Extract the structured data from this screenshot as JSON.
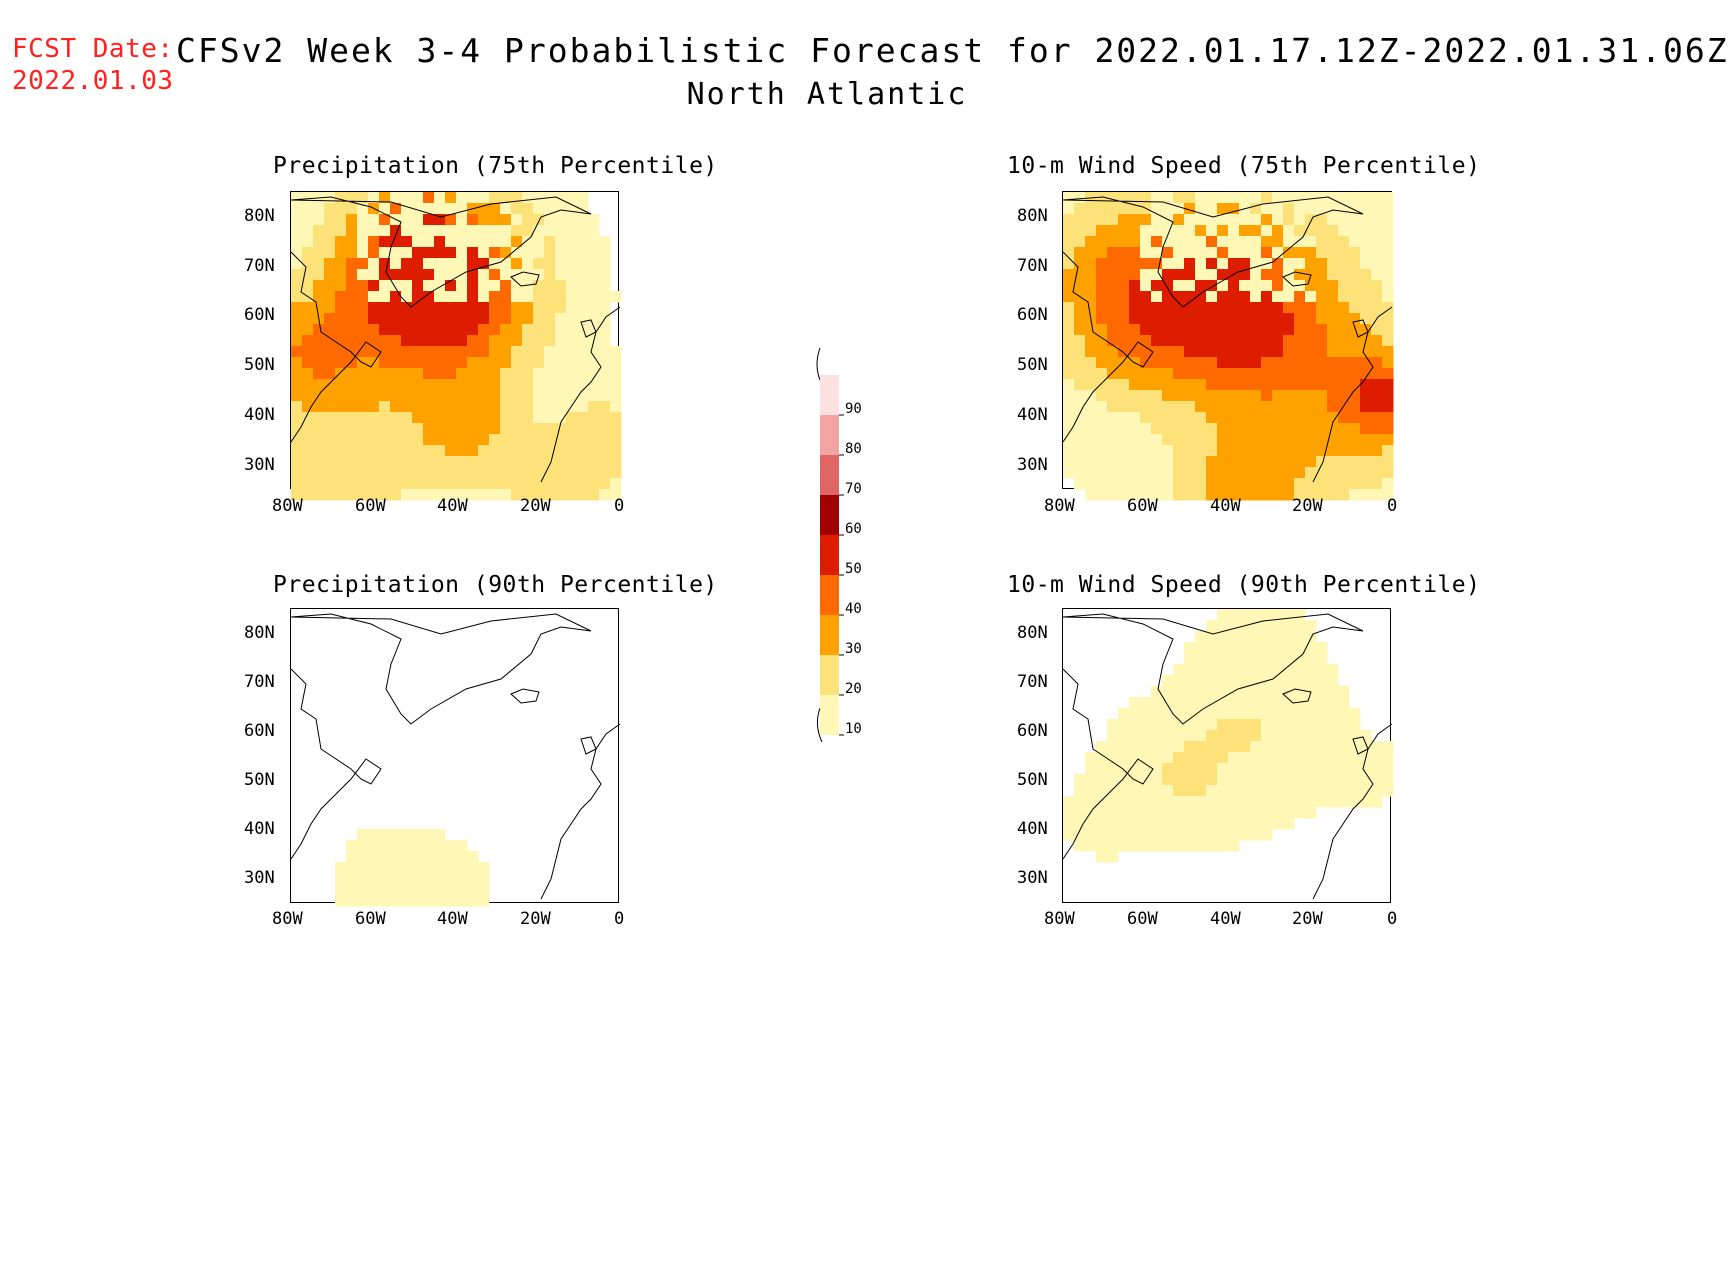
{
  "header": {
    "fcst_label": "FCST Date:",
    "fcst_date": "2022.01.03",
    "title": "CFSv2 Week 3-4 Probabilistic Forecast for 2022.01.17.12Z-2022.01.31.06Z",
    "region": "North Atlantic"
  },
  "axes": {
    "lat_labels": [
      "80N",
      "70N",
      "60N",
      "50N",
      "40N",
      "30N"
    ],
    "lon_labels": [
      "80W",
      "60W",
      "40W",
      "20W",
      "0"
    ]
  },
  "panels": [
    {
      "title": "Precipitation (75th Percentile)",
      "intensity": 0.75
    },
    {
      "title": "10-m Wind Speed (75th Percentile)",
      "intensity": 1.0
    },
    {
      "title": "Precipitation (90th Percentile)",
      "intensity": 0.2
    },
    {
      "title": "10-m Wind Speed (90th Percentile)",
      "intensity": 0.3
    }
  ],
  "colorbar": {
    "labels": [
      "90",
      "80",
      "70",
      "60",
      "50",
      "40",
      "30",
      "20",
      "10"
    ],
    "colors": [
      "#fde0e0",
      "#f4a3a3",
      "#e06666",
      "#a00000",
      "#dd1c00",
      "#ff6a00",
      "#ffa200",
      "#fde27a",
      "#fff7b5"
    ]
  },
  "palette": {
    "level_10_20": "#fff7b5",
    "level_20_30": "#fde27a",
    "level_30_40": "#ffa200",
    "level_40_50": "#ff6a00",
    "level_50_60": "#dd1c00",
    "level_60_70": "#a00000",
    "title_red": "#ff2020"
  }
}
